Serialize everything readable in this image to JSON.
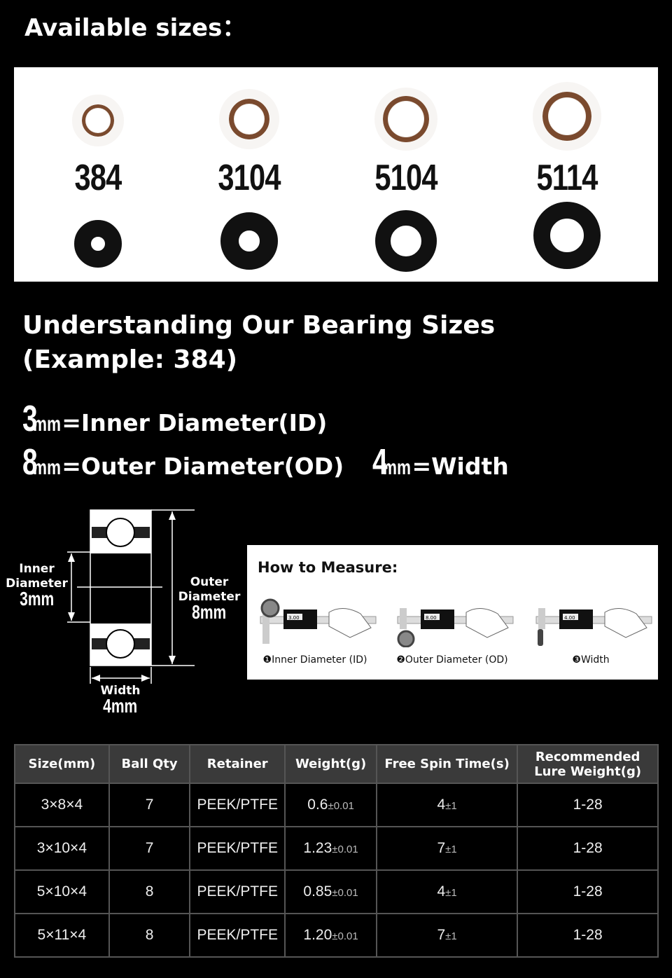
{
  "title": "Available sizes：",
  "sizes": [
    {
      "label": "384"
    },
    {
      "label": "3104"
    },
    {
      "label": "5104"
    },
    {
      "label": "5114"
    }
  ],
  "understanding": {
    "heading1": "Understanding Our Bearing Sizes",
    "heading2": "(Example: 384)"
  },
  "dims": {
    "inner_num": "3",
    "inner_unit": "mm",
    "inner_text": "=Inner Diameter(ID)",
    "outer_num": "8",
    "outer_unit": "mm",
    "outer_text": "=Outer Diameter(OD)",
    "width_num": "4",
    "width_unit": "mm",
    "width_text": "=Width"
  },
  "diagram": {
    "inner_label_1": "Inner",
    "inner_label_2": "Diameter",
    "inner_value": "3mm",
    "outer_label_1": "Outer",
    "outer_label_2": "Diameter",
    "outer_value": "8mm",
    "width_label": "Width",
    "width_value": "4mm"
  },
  "measure": {
    "title": "How to Measure:",
    "items": [
      {
        "num": "❶",
        "label": "Inner Diameter (ID)",
        "reading": "3.00"
      },
      {
        "num": "❷",
        "label": "Outer Diameter (OD)",
        "reading": "8.00"
      },
      {
        "num": "❸",
        "label": "Width",
        "reading": "4.00"
      }
    ]
  },
  "table": {
    "headers": [
      "Size(mm)",
      "Ball Qty",
      "Retainer",
      "Weight(g)",
      "Free Spin Time(s)",
      "Recommended",
      "Lure Weight(g)"
    ],
    "rows": [
      {
        "size": "3×8×4",
        "qty": "7",
        "retainer": "PEEK/PTFE",
        "weight": "0.6",
        "weight_tol": "±0.01",
        "spin": "4",
        "spin_tol": "±1",
        "lure": "1-28"
      },
      {
        "size": "3×10×4",
        "qty": "7",
        "retainer": "PEEK/PTFE",
        "weight": "1.23",
        "weight_tol": "±0.01",
        "spin": "7",
        "spin_tol": "±1",
        "lure": "1-28"
      },
      {
        "size": "5×10×4",
        "qty": "8",
        "retainer": "PEEK/PTFE",
        "weight": "0.85",
        "weight_tol": "±0.01",
        "spin": "4",
        "spin_tol": "±1",
        "lure": "1-28"
      },
      {
        "size": "5×11×4",
        "qty": "8",
        "retainer": "PEEK/PTFE",
        "weight": "1.20",
        "weight_tol": "±0.01",
        "spin": "7",
        "spin_tol": "±1",
        "lure": "1-28"
      }
    ]
  },
  "colors": {
    "retainer_brown": "#7a4a2e",
    "header_bg": "#3a3a3a"
  }
}
